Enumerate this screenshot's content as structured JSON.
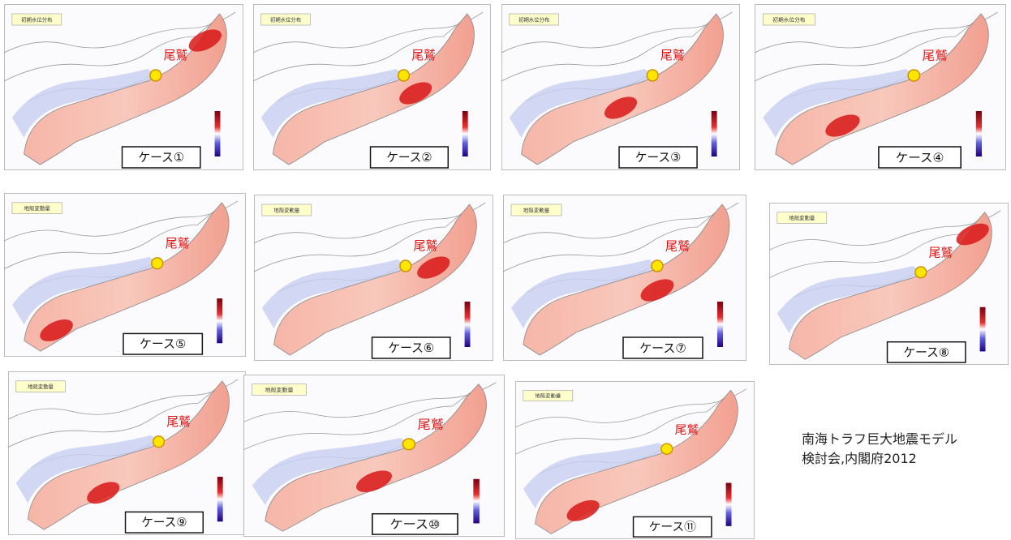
{
  "panels": [
    {
      "header": "初期水位分布",
      "place": "尾鷲",
      "case": "ケース①"
    },
    {
      "header": "初期水位分布",
      "place": "尾鷲",
      "case": "ケース②"
    },
    {
      "header": "初期水位分布",
      "place": "尾鷲",
      "case": "ケース③"
    },
    {
      "header": "初期水位分布",
      "place": "尾鷲",
      "case": "ケース④"
    },
    {
      "header": "地殻変動量",
      "place": "尾鷲",
      "case": "ケース⑤"
    },
    {
      "header": "地殻変動量",
      "place": "尾鷲",
      "case": "ケース⑥"
    },
    {
      "header": "地殻変動量",
      "place": "尾鷲",
      "case": "ケース⑦"
    },
    {
      "header": "地殻変動量",
      "place": "尾鷲",
      "case": "ケース⑧"
    },
    {
      "header": "地殻変動量",
      "place": "尾鷲",
      "case": "ケース⑨"
    },
    {
      "header": "地殻変動量",
      "place": "尾鷲",
      "case": "ケース⑩"
    },
    {
      "header": "地殻変動量",
      "place": "尾鷲",
      "case": "ケース⑪"
    }
  ],
  "caption": [
    "南海トラフ巨大地震モデル",
    "検討会,内閣府2012"
  ]
}
